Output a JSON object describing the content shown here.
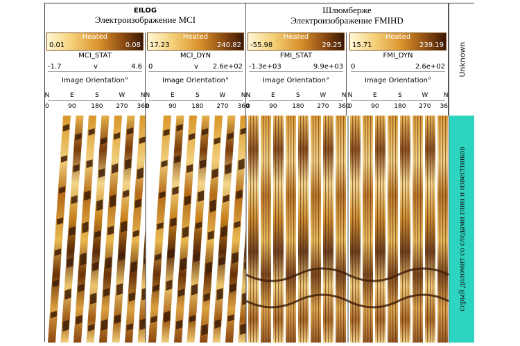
{
  "groups": [
    {
      "line1": "EILOG",
      "line2": "Электроизображение MCI"
    },
    {
      "line1": "Шлюмберже",
      "line2": "Электроизображение FMIHD"
    }
  ],
  "tracks": [
    {
      "palette": "Heated",
      "cbar_min": "0.01",
      "cbar_max": "0.08",
      "curve": "MCI_STAT",
      "range_min": "-1.7",
      "range_v": "v",
      "range_max": "4.6",
      "orientation": "Image Orientation°"
    },
    {
      "palette": "Heated",
      "cbar_min": "17.23",
      "cbar_max": "240.82",
      "curve": "MCI_DYN",
      "range_min": "0",
      "range_v": "v",
      "range_max": "2.6e+02",
      "orientation": "Image Orientation°"
    },
    {
      "palette": "Heated",
      "cbar_min": "-55.98",
      "cbar_max": "29.25",
      "curve": "FMI_STAT",
      "range_min": "-1.3e+03",
      "range_v": "",
      "range_max": "9.9e+03",
      "orientation": "Image Orientation°"
    },
    {
      "palette": "Heated",
      "cbar_min": "15.71",
      "cbar_max": "239.19",
      "curve": "FMI_DYN",
      "range_min": "0",
      "range_v": "",
      "range_max": "2.6e+02",
      "orientation": "Image Orientation°"
    }
  ],
  "directions": [
    "N",
    "E",
    "S",
    "W",
    "N"
  ],
  "degrees": [
    "0",
    "90",
    "180",
    "270",
    "360"
  ],
  "unknown_label": "Unknown",
  "lithology_label": "серый доломит со следами глин и известников",
  "colors": {
    "light": "#f6e6b0",
    "mid": "#d8901e",
    "dark": "#3a1a05",
    "lithology": "#2dd4bf"
  }
}
